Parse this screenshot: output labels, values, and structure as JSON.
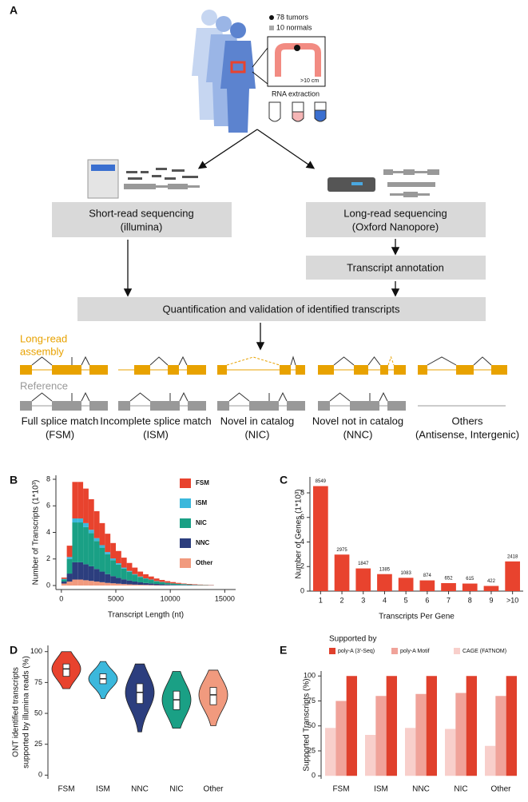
{
  "diagram": {
    "label": "A",
    "legend": [
      "78 tumors",
      "10 normals"
    ],
    "scale": ">10 cm",
    "extraction": "RNA extraction",
    "short_read": {
      "title": "Short-read sequencing",
      "sub": "(illumina)"
    },
    "long_read": {
      "title": "Long-read sequencing",
      "sub": "(Oxford Nanopore)"
    },
    "annotation": "Transcript annotation",
    "quantification": "Quantification and validation of identified transcripts",
    "assembly_label": [
      "Long-read",
      "assembly"
    ],
    "reference_label": "Reference",
    "classes": [
      {
        "name": "Full splice match",
        "abbr": "(FSM)"
      },
      {
        "name": "Incomplete splice match",
        "abbr": "(ISM)"
      },
      {
        "name": "Novel in catalog",
        "abbr": "(NIC)"
      },
      {
        "name": "Novel not in catalog",
        "abbr": "(NNC)"
      },
      {
        "name": "Others",
        "abbr": "(Antisense, Intergenic)"
      }
    ]
  },
  "chart_data": [
    {
      "panel": "B",
      "type": "histogram",
      "xlabel": "Transcript Length (nt)",
      "ylabel": "Number of Transcripts (1*10³)",
      "bins": [
        0,
        500,
        1000,
        1500,
        2000,
        2500,
        3000,
        3500,
        4000,
        4500,
        5000,
        5500,
        6000,
        6500,
        7000,
        7500,
        8000,
        8500,
        9000,
        9500,
        10000,
        10500,
        11000,
        11500,
        12000,
        12500,
        13000,
        13500,
        14000
      ],
      "series": [
        {
          "name": "FSM",
          "color": "#e8432e",
          "values": [
            0.1,
            0.85,
            2.75,
            2.75,
            2.6,
            2.3,
            2.03,
            1.66,
            1.38,
            1.16,
            0.92,
            0.75,
            0.6,
            0.49,
            0.37,
            0.31,
            0.23,
            0.19,
            0.15,
            0.12,
            0.1,
            0.07,
            0.04,
            0.04,
            0.04,
            0.03,
            0.02,
            0.02
          ]
        },
        {
          "name": "ISM",
          "color": "#3bb8dc",
          "values": [
            0.05,
            0.15,
            0.3,
            0.3,
            0.3,
            0.25,
            0.22,
            0.19,
            0.16,
            0.13,
            0.1,
            0.08,
            0.07,
            0.05,
            0.04,
            0.03,
            0.03,
            0.02,
            0.02,
            0.01,
            0.01,
            0.01,
            0.01,
            0,
            0,
            0,
            0,
            0
          ]
        },
        {
          "name": "NIC",
          "color": "#1aa085",
          "values": [
            0.15,
            1.1,
            3.0,
            3.0,
            2.8,
            2.5,
            2.1,
            1.8,
            1.5,
            1.2,
            1.0,
            0.8,
            0.65,
            0.51,
            0.4,
            0.32,
            0.26,
            0.2,
            0.16,
            0.12,
            0.1,
            0.08,
            0.06,
            0.05,
            0.03,
            0.03,
            0.02,
            0.01
          ]
        },
        {
          "name": "NNC",
          "color": "#2c3e7e",
          "values": [
            0.15,
            0.6,
            1.3,
            1.3,
            1.2,
            1.1,
            0.95,
            0.8,
            0.66,
            0.54,
            0.44,
            0.36,
            0.29,
            0.23,
            0.18,
            0.14,
            0.12,
            0.09,
            0.07,
            0.06,
            0.04,
            0.03,
            0.03,
            0.02,
            0.02,
            0.01,
            0.01,
            0.01
          ]
        },
        {
          "name": "Other",
          "color": "#f19a7e",
          "values": [
            0.15,
            0.3,
            0.45,
            0.45,
            0.4,
            0.35,
            0.3,
            0.25,
            0.2,
            0.17,
            0.14,
            0.11,
            0.09,
            0.07,
            0.06,
            0.05,
            0.04,
            0.03,
            0.02,
            0.02,
            0.01,
            0.01,
            0.01,
            0.01,
            0,
            0,
            0,
            0
          ]
        }
      ],
      "xlim": [
        -500,
        16000
      ],
      "xticks": [
        0,
        5000,
        10000,
        15000
      ],
      "ylim": [
        -0.3,
        8.3
      ],
      "yticks": [
        0,
        2,
        4,
        6,
        8
      ],
      "legend": "upper right"
    },
    {
      "panel": "C",
      "type": "bar",
      "xlabel": "Transcripts Per Gene",
      "ylabel": "Number of Genes (1*10³)",
      "categories": [
        "1",
        "2",
        "3",
        "4",
        "5",
        "6",
        "7",
        "8",
        "9",
        ">10"
      ],
      "color": "#e8432e",
      "values": [
        8.549,
        2.975,
        1.847,
        1.385,
        1.083,
        0.874,
        0.652,
        0.615,
        0.422,
        2.418
      ],
      "value_labels": [
        "8549",
        "2975",
        "1847",
        "1385",
        "1083",
        "874",
        "652",
        "615",
        "422",
        "2418"
      ],
      "ylim": [
        0,
        9.3
      ],
      "yticks": [
        0,
        2,
        4,
        6,
        8
      ]
    },
    {
      "panel": "D",
      "type": "violin",
      "ylabel": [
        "ONT identified transcripts",
        "supported by illumina reads (%)"
      ],
      "categories": [
        "FSM",
        "ISM",
        "NNC",
        "NIC",
        "Other"
      ],
      "colors": [
        "#e8432e",
        "#3bb8dc",
        "#2c3e7e",
        "#1aa085",
        "#f19a7e"
      ],
      "min": [
        70,
        62,
        35,
        38,
        40
      ],
      "q1": [
        80,
        74,
        58,
        53,
        57
      ],
      "median": [
        86,
        78,
        67,
        61,
        65
      ],
      "q3": [
        90,
        82,
        74,
        68,
        71
      ],
      "max": [
        100,
        92,
        90,
        84,
        85
      ],
      "ylim": [
        -3,
        105
      ],
      "yticks": [
        0,
        25,
        50,
        75,
        100
      ]
    },
    {
      "panel": "E",
      "type": "grouped_bar",
      "ylabel": "Supported Transcripts (%)",
      "legend_title": "Supported by",
      "categories": [
        "FSM",
        "ISM",
        "NNC",
        "NIC",
        "Other"
      ],
      "series": [
        {
          "name": "poly-A (3'-Seq)",
          "color": "#e0402c",
          "values": [
            100,
            100,
            100,
            100,
            100
          ]
        },
        {
          "name": "poly-A Motif",
          "color": "#f0a39a",
          "values": [
            75,
            80,
            82,
            83,
            80
          ]
        },
        {
          "name": "CAGE (FATNOM)",
          "color": "#f8cfcb",
          "values": [
            48,
            41,
            48,
            47,
            30
          ]
        }
      ],
      "ylim": [
        -3,
        105
      ],
      "yticks": [
        0,
        25,
        50,
        75,
        100
      ]
    }
  ]
}
